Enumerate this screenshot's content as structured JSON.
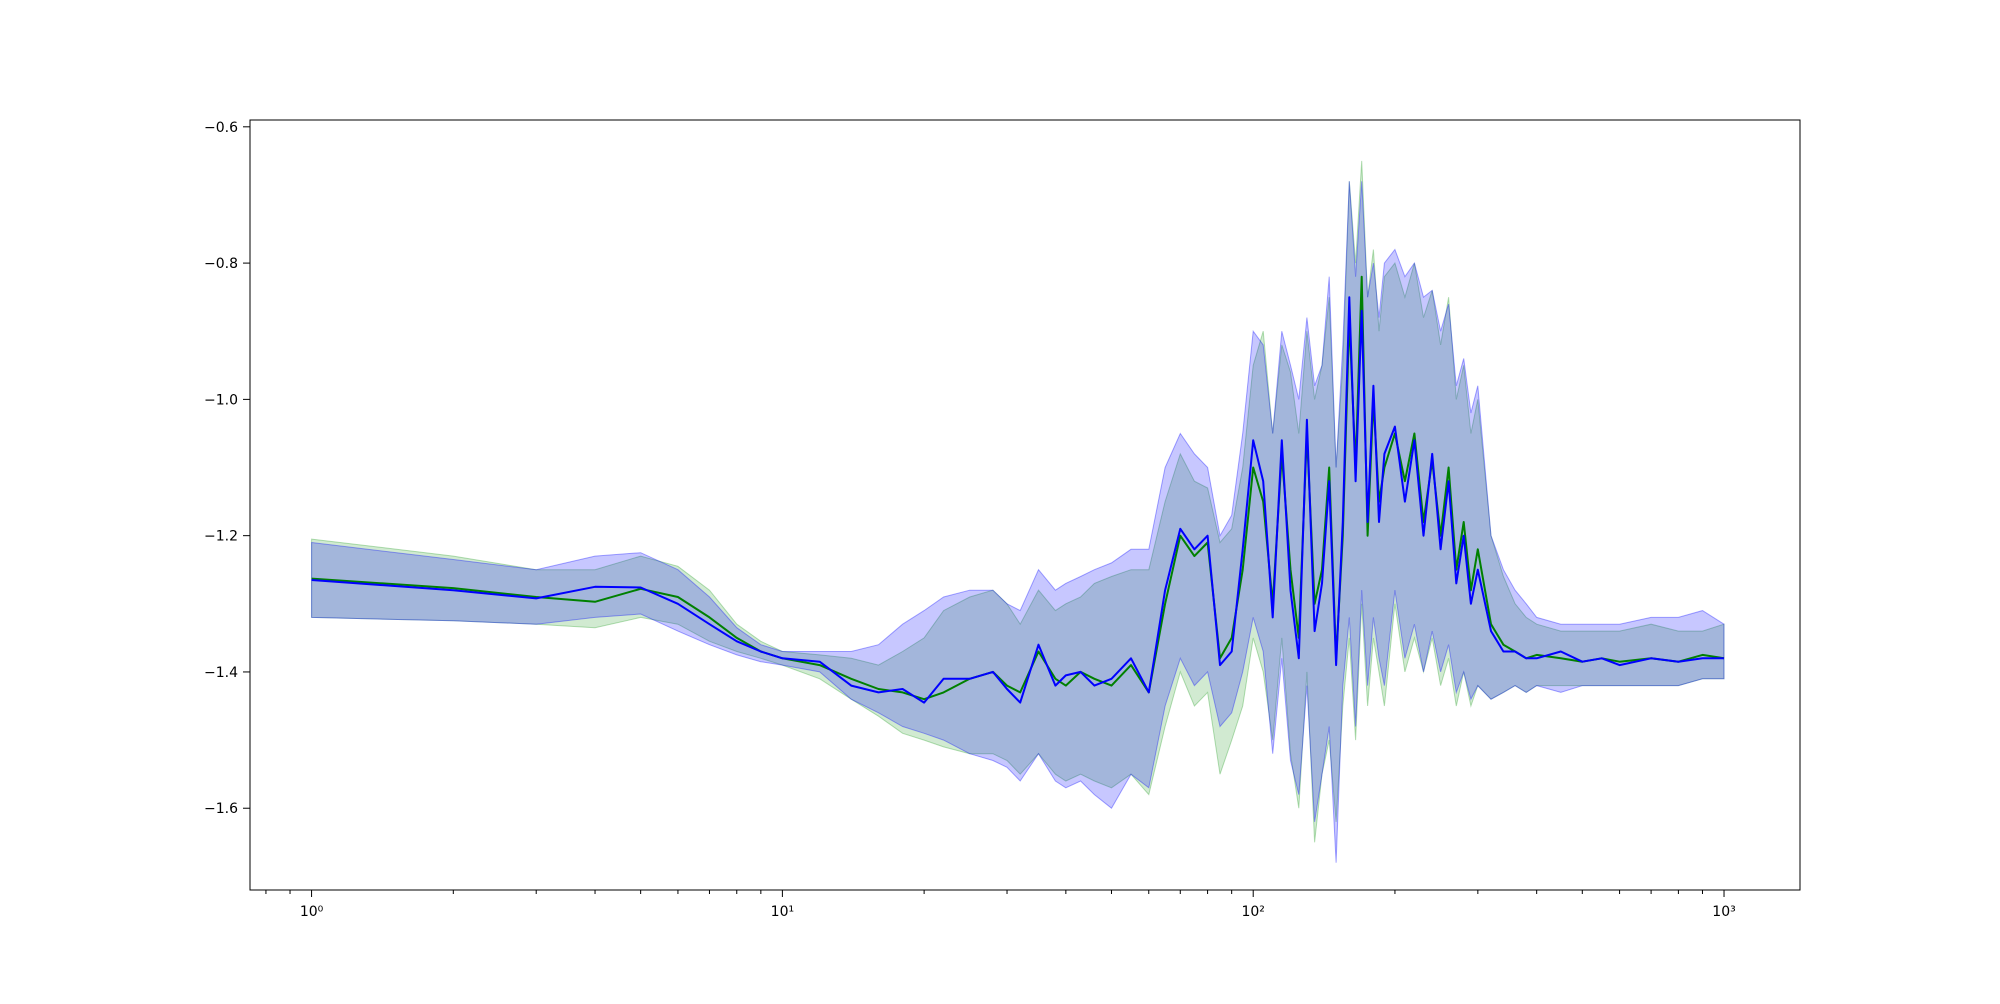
{
  "chart_data": {
    "type": "line",
    "title": "",
    "xlabel": "",
    "ylabel": "",
    "x_scale": "log",
    "xlim": [
      0.74,
      1450
    ],
    "ylim": [
      -1.72,
      -0.59
    ],
    "grid": false,
    "legend": "none",
    "x_ticks": [
      {
        "value": 1,
        "label": "10⁰"
      },
      {
        "value": 10,
        "label": "10¹"
      },
      {
        "value": 100,
        "label": "10²"
      },
      {
        "value": 1000,
        "label": "10³"
      }
    ],
    "y_ticks": [
      {
        "value": -0.6,
        "label": "−0.6"
      },
      {
        "value": -0.8,
        "label": "−0.8"
      },
      {
        "value": -1.0,
        "label": "−1.0"
      },
      {
        "value": -1.2,
        "label": "−1.2"
      },
      {
        "value": -1.4,
        "label": "−1.4"
      },
      {
        "value": -1.6,
        "label": "−1.6"
      }
    ],
    "series": [
      {
        "color": "#008000",
        "band_color": "#2ca02c",
        "x": [
          1,
          2,
          3,
          4,
          5,
          6,
          7,
          8,
          9,
          10,
          12,
          14,
          16,
          18,
          20,
          22,
          25,
          28,
          30,
          32,
          35,
          38,
          40,
          43,
          46,
          50,
          55,
          60,
          65,
          70,
          75,
          80,
          85,
          90,
          95,
          100,
          105,
          110,
          115,
          120,
          125,
          130,
          135,
          140,
          145,
          150,
          155,
          160,
          165,
          170,
          175,
          180,
          185,
          190,
          200,
          210,
          220,
          230,
          240,
          250,
          260,
          270,
          280,
          290,
          300,
          320,
          340,
          360,
          380,
          400,
          450,
          500,
          550,
          600,
          700,
          800,
          900,
          1000
        ],
        "values": [
          -1.263,
          -1.277,
          -1.29,
          -1.297,
          -1.278,
          -1.29,
          -1.32,
          -1.35,
          -1.37,
          -1.38,
          -1.39,
          -1.41,
          -1.425,
          -1.43,
          -1.44,
          -1.43,
          -1.41,
          -1.4,
          -1.42,
          -1.43,
          -1.37,
          -1.41,
          -1.42,
          -1.4,
          -1.41,
          -1.42,
          -1.39,
          -1.43,
          -1.3,
          -1.2,
          -1.23,
          -1.21,
          -1.38,
          -1.35,
          -1.25,
          -1.1,
          -1.15,
          -1.3,
          -1.08,
          -1.25,
          -1.35,
          -1.05,
          -1.3,
          -1.25,
          -1.1,
          -1.38,
          -1.2,
          -0.88,
          -1.1,
          -0.82,
          -1.2,
          -1.0,
          -1.15,
          -1.1,
          -1.05,
          -1.12,
          -1.05,
          -1.18,
          -1.09,
          -1.2,
          -1.1,
          -1.25,
          -1.18,
          -1.28,
          -1.22,
          -1.33,
          -1.36,
          -1.37,
          -1.38,
          -1.375,
          -1.38,
          -1.385,
          -1.38,
          -1.385,
          -1.38,
          -1.385,
          -1.375,
          -1.38
        ],
        "lower": [
          -1.32,
          -1.325,
          -1.33,
          -1.335,
          -1.32,
          -1.33,
          -1.355,
          -1.37,
          -1.38,
          -1.39,
          -1.41,
          -1.44,
          -1.465,
          -1.49,
          -1.5,
          -1.51,
          -1.52,
          -1.52,
          -1.53,
          -1.55,
          -1.52,
          -1.55,
          -1.56,
          -1.55,
          -1.56,
          -1.57,
          -1.55,
          -1.58,
          -1.48,
          -1.4,
          -1.45,
          -1.43,
          -1.55,
          -1.5,
          -1.45,
          -1.35,
          -1.4,
          -1.5,
          -1.35,
          -1.52,
          -1.6,
          -1.4,
          -1.65,
          -1.55,
          -1.5,
          -1.62,
          -1.45,
          -1.35,
          -1.5,
          -1.3,
          -1.45,
          -1.35,
          -1.4,
          -1.45,
          -1.3,
          -1.4,
          -1.35,
          -1.4,
          -1.35,
          -1.42,
          -1.38,
          -1.45,
          -1.4,
          -1.45,
          -1.42,
          -1.44,
          -1.43,
          -1.42,
          -1.43,
          -1.42,
          -1.42,
          -1.42,
          -1.42,
          -1.42,
          -1.42,
          -1.42,
          -1.41,
          -1.41
        ],
        "upper": [
          -1.205,
          -1.23,
          -1.25,
          -1.25,
          -1.23,
          -1.245,
          -1.28,
          -1.33,
          -1.355,
          -1.37,
          -1.375,
          -1.38,
          -1.39,
          -1.37,
          -1.35,
          -1.31,
          -1.29,
          -1.28,
          -1.3,
          -1.33,
          -1.28,
          -1.31,
          -1.3,
          -1.29,
          -1.27,
          -1.26,
          -1.25,
          -1.25,
          -1.15,
          -1.08,
          -1.12,
          -1.13,
          -1.21,
          -1.19,
          -1.1,
          -0.95,
          -0.9,
          -1.05,
          -0.92,
          -0.96,
          -1.05,
          -0.9,
          -1.0,
          -0.95,
          -0.85,
          -1.1,
          -0.95,
          -0.68,
          -0.8,
          -0.65,
          -0.85,
          -0.78,
          -0.9,
          -0.82,
          -0.8,
          -0.85,
          -0.8,
          -0.88,
          -0.84,
          -0.92,
          -0.85,
          -1.0,
          -0.95,
          -1.05,
          -1.0,
          -1.2,
          -1.26,
          -1.3,
          -1.32,
          -1.33,
          -1.34,
          -1.34,
          -1.34,
          -1.34,
          -1.33,
          -1.34,
          -1.34,
          -1.33
        ]
      },
      {
        "color": "#0000ff",
        "band_color": "#0000ff",
        "x": [
          1,
          2,
          3,
          4,
          5,
          6,
          7,
          8,
          9,
          10,
          12,
          14,
          16,
          18,
          20,
          22,
          25,
          28,
          30,
          32,
          35,
          38,
          40,
          43,
          46,
          50,
          55,
          60,
          65,
          70,
          75,
          80,
          85,
          90,
          95,
          100,
          105,
          110,
          115,
          120,
          125,
          130,
          135,
          140,
          145,
          150,
          155,
          160,
          165,
          170,
          175,
          180,
          185,
          190,
          200,
          210,
          220,
          230,
          240,
          250,
          260,
          270,
          280,
          290,
          300,
          320,
          340,
          360,
          380,
          400,
          450,
          500,
          550,
          600,
          700,
          800,
          900,
          1000
        ],
        "values": [
          -1.265,
          -1.28,
          -1.292,
          -1.275,
          -1.276,
          -1.3,
          -1.33,
          -1.355,
          -1.37,
          -1.38,
          -1.385,
          -1.42,
          -1.43,
          -1.425,
          -1.445,
          -1.41,
          -1.41,
          -1.4,
          -1.425,
          -1.445,
          -1.36,
          -1.42,
          -1.405,
          -1.4,
          -1.42,
          -1.41,
          -1.38,
          -1.43,
          -1.28,
          -1.19,
          -1.22,
          -1.2,
          -1.39,
          -1.37,
          -1.22,
          -1.06,
          -1.12,
          -1.32,
          -1.06,
          -1.28,
          -1.38,
          -1.03,
          -1.34,
          -1.27,
          -1.12,
          -1.39,
          -1.18,
          -0.85,
          -1.12,
          -0.87,
          -1.18,
          -0.98,
          -1.18,
          -1.08,
          -1.04,
          -1.15,
          -1.06,
          -1.2,
          -1.08,
          -1.22,
          -1.12,
          -1.27,
          -1.2,
          -1.3,
          -1.25,
          -1.34,
          -1.37,
          -1.37,
          -1.38,
          -1.38,
          -1.37,
          -1.385,
          -1.38,
          -1.39,
          -1.38,
          -1.385,
          -1.38,
          -1.38
        ],
        "lower": [
          -1.32,
          -1.325,
          -1.33,
          -1.32,
          -1.315,
          -1.34,
          -1.36,
          -1.375,
          -1.385,
          -1.39,
          -1.4,
          -1.44,
          -1.46,
          -1.48,
          -1.49,
          -1.5,
          -1.52,
          -1.53,
          -1.54,
          -1.56,
          -1.52,
          -1.56,
          -1.57,
          -1.56,
          -1.58,
          -1.6,
          -1.55,
          -1.57,
          -1.45,
          -1.38,
          -1.42,
          -1.4,
          -1.48,
          -1.46,
          -1.4,
          -1.32,
          -1.37,
          -1.52,
          -1.38,
          -1.53,
          -1.58,
          -1.42,
          -1.62,
          -1.55,
          -1.48,
          -1.68,
          -1.42,
          -1.32,
          -1.48,
          -1.28,
          -1.42,
          -1.32,
          -1.38,
          -1.42,
          -1.28,
          -1.38,
          -1.33,
          -1.4,
          -1.34,
          -1.4,
          -1.36,
          -1.43,
          -1.4,
          -1.44,
          -1.42,
          -1.44,
          -1.43,
          -1.42,
          -1.43,
          -1.42,
          -1.43,
          -1.42,
          -1.42,
          -1.42,
          -1.42,
          -1.42,
          -1.41,
          -1.41
        ],
        "upper": [
          -1.21,
          -1.235,
          -1.25,
          -1.23,
          -1.225,
          -1.25,
          -1.29,
          -1.335,
          -1.36,
          -1.37,
          -1.37,
          -1.37,
          -1.36,
          -1.33,
          -1.31,
          -1.29,
          -1.28,
          -1.28,
          -1.3,
          -1.31,
          -1.25,
          -1.28,
          -1.27,
          -1.26,
          -1.25,
          -1.24,
          -1.22,
          -1.22,
          -1.1,
          -1.05,
          -1.08,
          -1.1,
          -1.2,
          -1.17,
          -1.05,
          -0.9,
          -0.92,
          -1.05,
          -0.9,
          -0.95,
          -1.0,
          -0.88,
          -0.98,
          -0.95,
          -0.82,
          -1.1,
          -0.92,
          -0.68,
          -0.82,
          -0.68,
          -0.85,
          -0.8,
          -0.88,
          -0.8,
          -0.78,
          -0.82,
          -0.8,
          -0.85,
          -0.84,
          -0.9,
          -0.86,
          -0.98,
          -0.94,
          -1.02,
          -0.98,
          -1.2,
          -1.25,
          -1.28,
          -1.3,
          -1.32,
          -1.33,
          -1.33,
          -1.33,
          -1.33,
          -1.32,
          -1.32,
          -1.31,
          -1.33
        ]
      }
    ]
  }
}
